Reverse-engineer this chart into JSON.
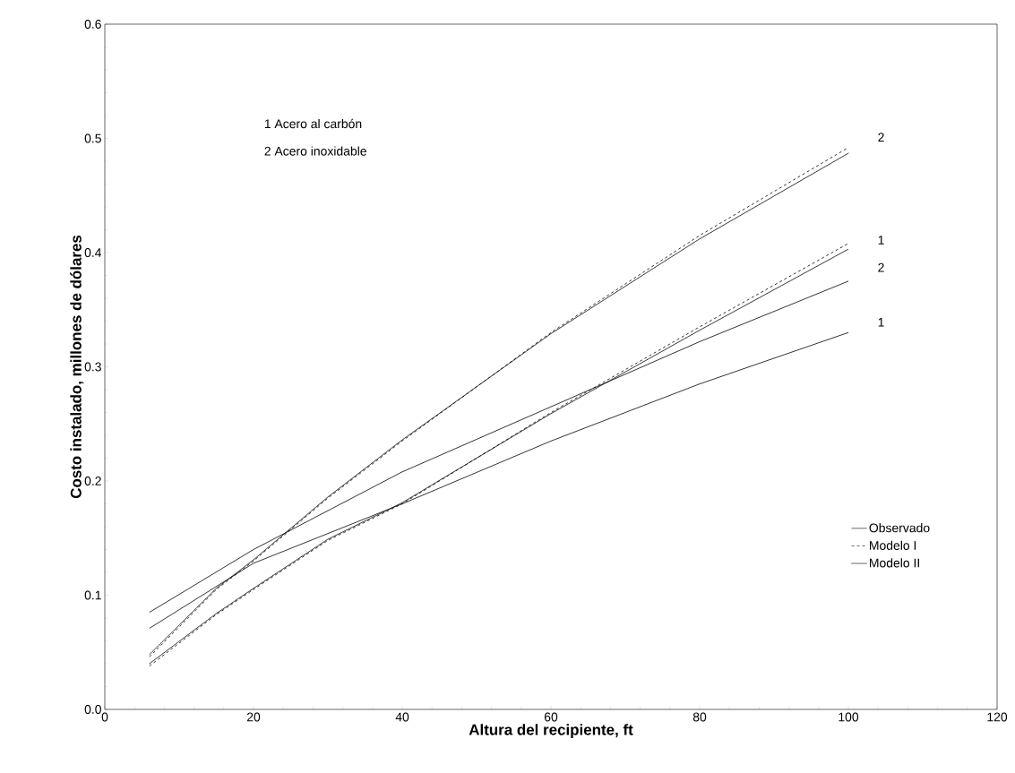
{
  "chart_data": {
    "type": "line",
    "xlabel": "Altura del recipiente, ft",
    "ylabel": "Costo instalado, millones de dólares",
    "xlim": [
      0,
      120
    ],
    "xticks": [
      0,
      20,
      40,
      60,
      80,
      100,
      120
    ],
    "ylim": [
      0,
      0.6
    ],
    "yticks": [
      {
        "value": 0,
        "label": "0.0"
      },
      0.1,
      0.2,
      0.3,
      0.4,
      0.5,
      0.6
    ],
    "grid": false,
    "legend": "bottom right",
    "marker": "none",
    "series": [
      {
        "name": "Observado",
        "color": "#000000",
        "line_style": "solid",
        "x": [
          6,
          20,
          40,
          60,
          80,
          100
        ],
        "values": [
          0.071,
          0.128,
          0.18,
          0.235,
          0.285,
          0.33
        ]
      },
      {
        "color": "#000000",
        "line_style": "solid",
        "x": [
          6,
          20,
          40,
          60,
          80,
          100
        ],
        "values": [
          0.085,
          0.14,
          0.208,
          0.265,
          0.322,
          0.375
        ]
      },
      {
        "name": "Modelo I",
        "color": "#000000",
        "line_style": "dashed",
        "x": [
          6,
          15,
          20,
          30,
          40,
          60,
          80,
          100
        ],
        "values": [
          0.038,
          0.083,
          0.105,
          0.148,
          0.18,
          0.26,
          0.335,
          0.408
        ]
      },
      {
        "color": "#000000",
        "line_style": "dashed",
        "x": [
          6,
          15,
          20,
          30,
          40,
          60,
          80,
          100
        ],
        "values": [
          0.046,
          0.105,
          0.13,
          0.185,
          0.235,
          0.33,
          0.415,
          0.492
        ]
      },
      {
        "name": "Modelo II",
        "color": "#000000",
        "line_style": "dotted",
        "x": [
          6,
          15,
          20,
          30,
          40,
          60,
          80,
          100
        ],
        "values": [
          0.04,
          0.084,
          0.106,
          0.149,
          0.181,
          0.259,
          0.332,
          0.403
        ]
      },
      {
        "color": "#000000",
        "line_style": "dotted",
        "x": [
          6,
          15,
          20,
          30,
          40,
          60,
          80,
          100
        ],
        "values": [
          0.048,
          0.106,
          0.131,
          0.186,
          0.236,
          0.329,
          0.412,
          0.487
        ]
      }
    ],
    "annotations": [
      "1  Acero al carbón",
      "2  Acero inoxidable",
      "2",
      "1",
      "2",
      "1"
    ]
  }
}
